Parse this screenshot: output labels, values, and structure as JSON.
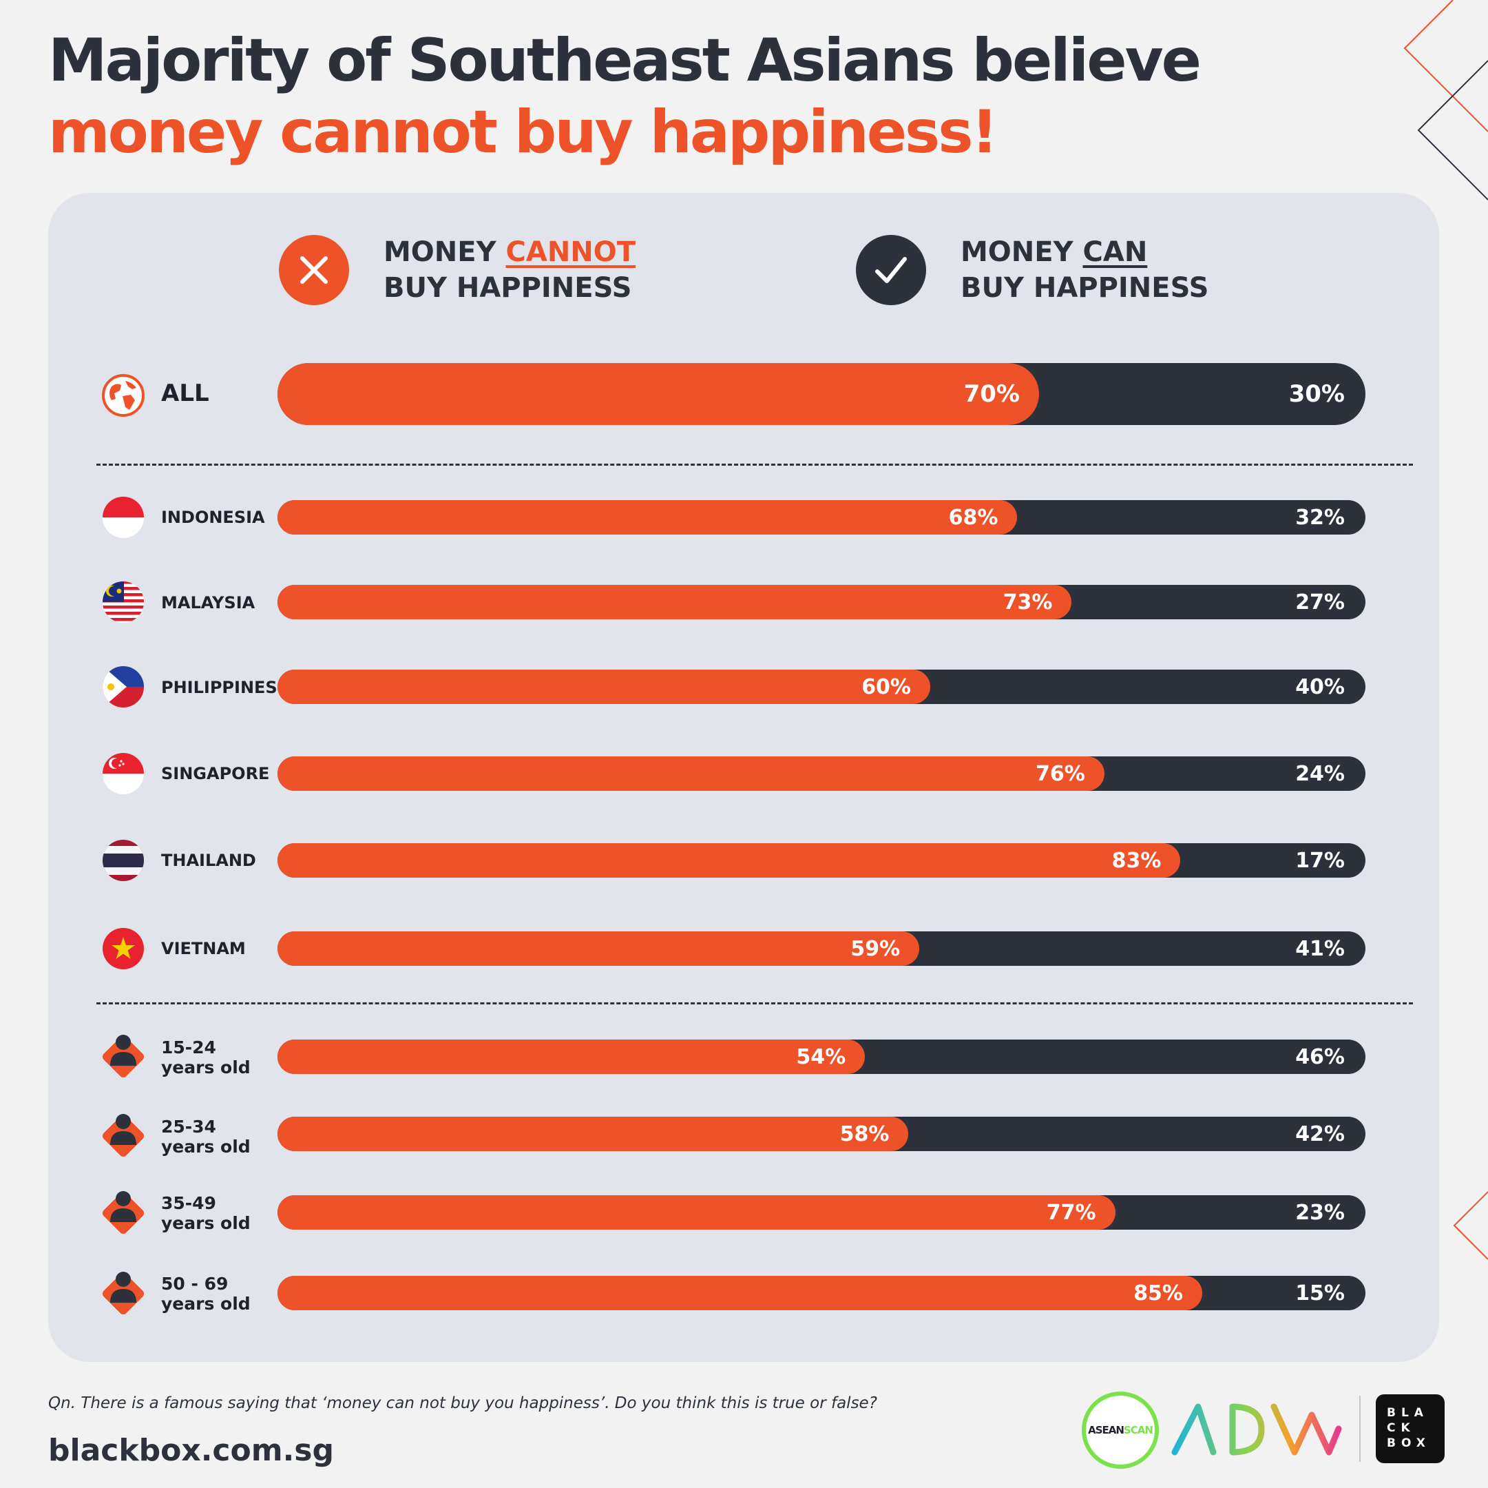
{
  "title": {
    "line1": "Majority of Southeast Asians believe",
    "line2": "money cannot buy happiness!"
  },
  "legend": {
    "cannot": {
      "prefix": "MONEY ",
      "emph": "CANNOT",
      "line2": "BUY HAPPINESS"
    },
    "can": {
      "prefix": "MONEY ",
      "emph": "CAN",
      "line2": "BUY HAPPINESS"
    }
  },
  "colors": {
    "cannot": "#ee5228",
    "can": "#2d313c",
    "panel": "#e1e4ea"
  },
  "chart_data": {
    "type": "bar",
    "orientation": "horizontal",
    "stacked": true,
    "unit": "%",
    "categories": [
      "ALL",
      "INDONESIA",
      "MALAYSIA",
      "PHILIPPINES",
      "SINGAPORE",
      "THAILAND",
      "VIETNAM",
      "15-24 years old",
      "25-34 years old",
      "35-49 years old",
      "50 - 69 years old"
    ],
    "series": [
      {
        "name": "MONEY CANNOT BUY HAPPINESS",
        "values": [
          70,
          68,
          73,
          60,
          76,
          83,
          59,
          54,
          58,
          77,
          85
        ],
        "color": "#ee5228"
      },
      {
        "name": "MONEY CAN BUY HAPPINESS",
        "values": [
          30,
          32,
          27,
          40,
          24,
          17,
          41,
          46,
          42,
          23,
          15
        ],
        "color": "#2d313c"
      }
    ],
    "xlim": [
      0,
      100
    ]
  },
  "rows": [
    {
      "label": "ALL",
      "icon": "globe-icon",
      "cannot": "70%",
      "can": "30%"
    },
    {
      "label": "INDONESIA",
      "icon": "indonesia-flag-icon",
      "cannot": "68%",
      "can": "32%"
    },
    {
      "label": "MALAYSIA",
      "icon": "malaysia-flag-icon",
      "cannot": "73%",
      "can": "27%"
    },
    {
      "label": "PHILIPPINES",
      "icon": "philippines-flag-icon",
      "cannot": "60%",
      "can": "40%"
    },
    {
      "label": "SINGAPORE",
      "icon": "singapore-flag-icon",
      "cannot": "76%",
      "can": "24%"
    },
    {
      "label": "THAILAND",
      "icon": "thailand-flag-icon",
      "cannot": "83%",
      "can": "17%"
    },
    {
      "label": "VIETNAM",
      "icon": "vietnam-flag-icon",
      "cannot": "59%",
      "can": "41%"
    },
    {
      "label_a": "15-24",
      "label_b": "years old",
      "icon": "person-icon",
      "cannot": "54%",
      "can": "46%"
    },
    {
      "label_a": "25-34",
      "label_b": "years old",
      "icon": "person-icon",
      "cannot": "58%",
      "can": "42%"
    },
    {
      "label_a": "35-49",
      "label_b": "years old",
      "icon": "person-icon",
      "cannot": "77%",
      "can": "23%"
    },
    {
      "label_a": "50 - 69",
      "label_b": "years old",
      "icon": "person-icon",
      "cannot": "85%",
      "can": "15%"
    }
  ],
  "footer": {
    "question": "Qn. There is a famous saying that ‘money can not buy you happiness’. Do you think this is true or false?",
    "site": "blackbox.com.sg",
    "logo_asean_a": "ASEAN",
    "logo_asean_b": "SCAN",
    "logo_blackbox": "BLA\nCK\nBOX"
  }
}
